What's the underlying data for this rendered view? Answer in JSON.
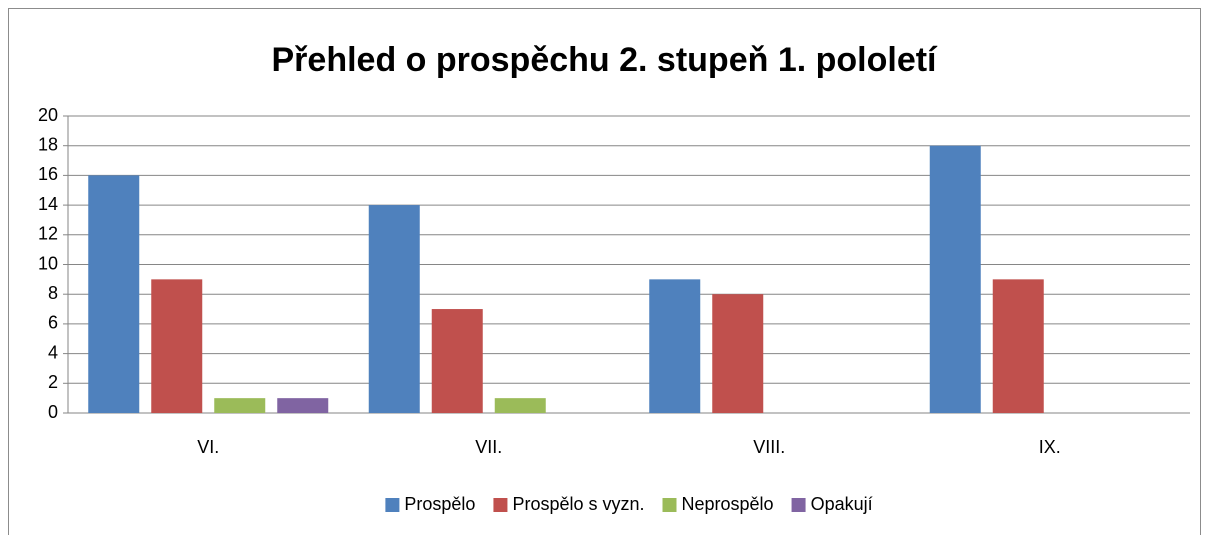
{
  "chart_data": {
    "type": "bar",
    "title": "Přehled o prospěchu 2. stupeň 1. pololetí",
    "categories": [
      "VI.",
      "VII.",
      "VIII.",
      "IX."
    ],
    "series": [
      {
        "name": "Prospělo",
        "color": "#4f81bd",
        "values": [
          16,
          14,
          9,
          18
        ]
      },
      {
        "name": "Prospělo s vyzn.",
        "color": "#c0504d",
        "values": [
          9,
          7,
          8,
          9
        ]
      },
      {
        "name": "Neprospělo",
        "color": "#9bbb59",
        "values": [
          1,
          1,
          0,
          0
        ]
      },
      {
        "name": "Opakují",
        "color": "#8064a2",
        "values": [
          1,
          0,
          0,
          0
        ]
      }
    ],
    "ylim": [
      0,
      20
    ],
    "yticks": [
      0,
      2,
      4,
      6,
      8,
      10,
      12,
      14,
      16,
      18,
      20
    ],
    "grid": true,
    "legend": "bottom"
  }
}
